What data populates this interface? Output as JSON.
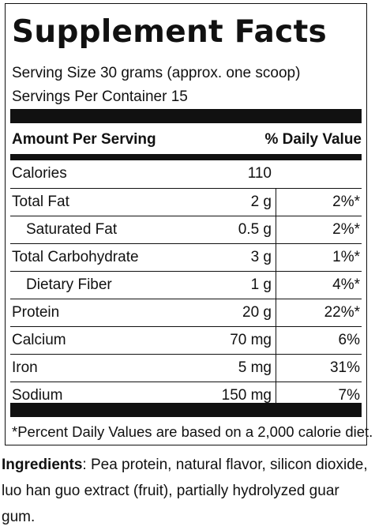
{
  "panel": {
    "title": "Supplement Facts",
    "serving_size": "Serving Size 30 grams (approx. one scoop)",
    "servings_per_container": "Servings Per Container 15",
    "header": {
      "amount_label": "Amount Per Serving",
      "dv_label": "% Daily Value"
    },
    "rows": [
      {
        "name": "Calories",
        "amount": "110",
        "dv": ""
      },
      {
        "name": "Total Fat",
        "amount": "2 g",
        "dv": "2%*"
      },
      {
        "name": "Saturated Fat",
        "amount": "0.5 g",
        "dv": "2%*"
      },
      {
        "name": "Total Carbohydrate",
        "amount": "3 g",
        "dv": "1%*"
      },
      {
        "name": "Dietary Fiber",
        "amount": "1 g",
        "dv": "4%*"
      },
      {
        "name": "Protein",
        "amount": "20 g",
        "dv": "22%*"
      },
      {
        "name": "Calcium",
        "amount": "70 mg",
        "dv": "6%"
      },
      {
        "name": "Iron",
        "amount": "5 mg",
        "dv": "31%"
      },
      {
        "name": "Sodium",
        "amount": "150 mg",
        "dv": "7%"
      }
    ],
    "footnote": "*Percent Daily Values are based on a 2,000 calorie diet."
  },
  "ingredients": {
    "label": "Ingredients",
    "text": ": Pea protein, natural flavor, silicon dioxide, luo han guo extract (fruit), partially hydrolyzed guar gum."
  }
}
